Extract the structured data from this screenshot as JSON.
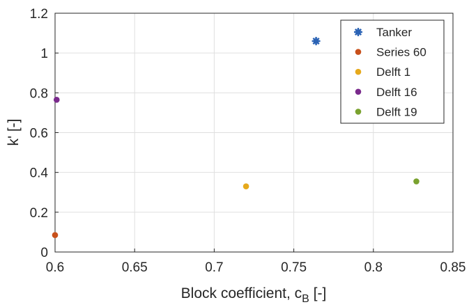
{
  "chart_data": {
    "type": "scatter",
    "title": "",
    "xlabel": "Block coefficient, c",
    "xlabel_subscript": "B",
    "xlabel_suffix": " [-]",
    "ylabel": "k' [-]",
    "xlim": [
      0.6,
      0.85
    ],
    "ylim": [
      0,
      1.2
    ],
    "xticks": [
      "0.6",
      "0.65",
      "0.7",
      "0.75",
      "0.8",
      "0.85"
    ],
    "yticks": [
      "0",
      "0.2",
      "0.4",
      "0.6",
      "0.8",
      "1",
      "1.2"
    ],
    "grid": true,
    "legend_position": "top-right",
    "series": [
      {
        "name": "Tanker",
        "color": "#2b63b5",
        "marker": "star",
        "points": [
          [
            0.764,
            1.06
          ]
        ]
      },
      {
        "name": "Series 60",
        "color": "#c8501b",
        "marker": "dot",
        "points": [
          [
            0.6,
            0.085
          ]
        ]
      },
      {
        "name": "Delft 1",
        "color": "#e6a91c",
        "marker": "dot",
        "points": [
          [
            0.72,
            0.33
          ]
        ]
      },
      {
        "name": "Delft 16",
        "color": "#7a2a8c",
        "marker": "dot",
        "points": [
          [
            0.601,
            0.765
          ]
        ]
      },
      {
        "name": "Delft 19",
        "color": "#7aa22f",
        "marker": "dot",
        "points": [
          [
            0.827,
            0.355
          ]
        ]
      }
    ]
  }
}
